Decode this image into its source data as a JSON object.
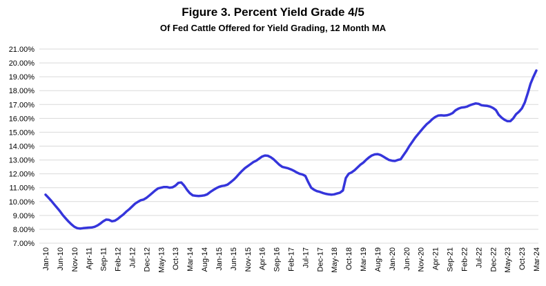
{
  "chart_data": {
    "type": "line",
    "title": "Figure 3. Percent Yield Grade 4/5",
    "subtitle": "Of Fed Cattle Offered for Yield Grading, 12 Month MA",
    "xlabel": "",
    "ylabel": "",
    "legend": "none",
    "grid": "horizontal",
    "ylim": [
      7,
      21
    ],
    "y_ticks": [
      "21.00%",
      "20.00%",
      "19.00%",
      "18.00%",
      "17.00%",
      "16.00%",
      "15.00%",
      "14.00%",
      "13.00%",
      "12.00%",
      "11.00%",
      "10.00%",
      "9.00%",
      "8.00%",
      "7.00%"
    ],
    "x_tick_every": 5,
    "x_tick_labels": [
      "Jan-10",
      "Jun-10",
      "Nov-10",
      "Apr-11",
      "Sep-11",
      "Feb-12",
      "Jul-12",
      "Dec-12",
      "May-13",
      "Oct-13",
      "Mar-14",
      "Aug-14",
      "Jan-15",
      "Jun-15",
      "Nov-15",
      "Apr-16",
      "Sep-16",
      "Feb-17",
      "Jul-17",
      "Dec-17",
      "May-18",
      "Oct-18",
      "Mar-19",
      "Aug-19",
      "Jan-20",
      "Jun-20",
      "Nov-20",
      "Apr-21",
      "Sep-21",
      "Feb-22",
      "Jul-22",
      "Dec-22",
      "May-23",
      "Oct-23",
      "Mar-24"
    ],
    "series_name": "Percent Yield Grade 4/5, 12 Month MA",
    "values": [
      10.5,
      10.28,
      10.05,
      9.8,
      9.55,
      9.3,
      9.02,
      8.78,
      8.55,
      8.35,
      8.18,
      8.08,
      8.05,
      8.08,
      8.1,
      8.12,
      8.13,
      8.18,
      8.28,
      8.42,
      8.58,
      8.7,
      8.68,
      8.58,
      8.62,
      8.75,
      8.92,
      9.08,
      9.28,
      9.45,
      9.65,
      9.85,
      9.98,
      10.1,
      10.15,
      10.28,
      10.45,
      10.62,
      10.8,
      10.95,
      11.0,
      11.05,
      11.05,
      11.0,
      11.03,
      11.15,
      11.35,
      11.38,
      11.15,
      10.85,
      10.6,
      10.45,
      10.42,
      10.4,
      10.42,
      10.45,
      10.52,
      10.68,
      10.82,
      10.95,
      11.05,
      11.12,
      11.15,
      11.22,
      11.38,
      11.55,
      11.75,
      11.98,
      12.2,
      12.4,
      12.55,
      12.7,
      12.85,
      12.95,
      13.1,
      13.25,
      13.32,
      13.3,
      13.2,
      13.05,
      12.85,
      12.65,
      12.5,
      12.45,
      12.4,
      12.32,
      12.22,
      12.1,
      12.0,
      11.95,
      11.85,
      11.4,
      11.0,
      10.85,
      10.75,
      10.7,
      10.62,
      10.56,
      10.52,
      10.5,
      10.52,
      10.58,
      10.64,
      10.8,
      11.7,
      12.0,
      12.1,
      12.25,
      12.45,
      12.65,
      12.8,
      13.0,
      13.18,
      13.32,
      13.4,
      13.42,
      13.36,
      13.25,
      13.12,
      13.0,
      12.95,
      12.93,
      13.0,
      13.05,
      13.35,
      13.65,
      14.0,
      14.3,
      14.6,
      14.85,
      15.1,
      15.35,
      15.58,
      15.75,
      15.95,
      16.1,
      16.2,
      16.22,
      16.2,
      16.22,
      16.28,
      16.38,
      16.58,
      16.7,
      16.78,
      16.8,
      16.85,
      16.95,
      17.02,
      17.08,
      17.05,
      16.95,
      16.92,
      16.9,
      16.85,
      16.75,
      16.6,
      16.25,
      16.05,
      15.9,
      15.8,
      15.8,
      16.0,
      16.3,
      16.48,
      16.72,
      17.15,
      17.8,
      18.5,
      19.0,
      19.45
    ],
    "line_color": "#3535DB",
    "grid_color": "#D9D9D9",
    "text_color": "#000000",
    "background": "#FFFFFF"
  }
}
